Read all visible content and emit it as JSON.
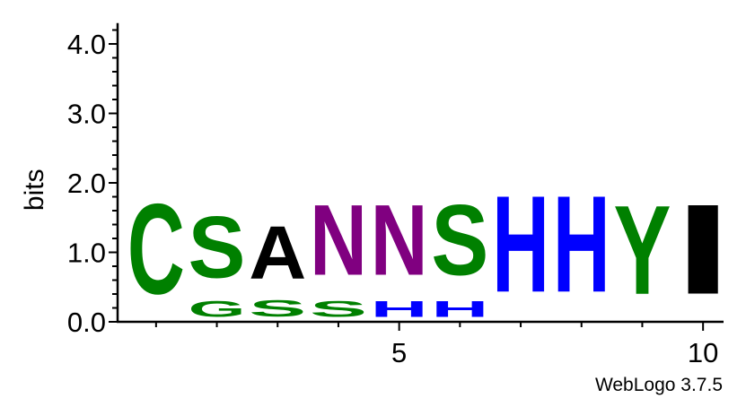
{
  "chart_data": {
    "type": "sequence-logo",
    "ylabel": "bits",
    "ylim": [
      0,
      4.3
    ],
    "y_ticks": [
      "0.0",
      "1.0",
      "2.0",
      "3.0",
      "4.0"
    ],
    "y_tick_values": [
      0,
      1,
      2,
      3,
      4
    ],
    "x_ticks": [
      "5",
      "10"
    ],
    "x_tick_values": [
      5,
      10
    ],
    "positions": [
      1,
      2,
      3,
      4,
      5,
      6,
      7,
      8,
      9,
      10
    ],
    "columns": [
      {
        "position": 1,
        "letters": [
          {
            "letter": "C",
            "bits": 2.08,
            "color": "#008000"
          }
        ]
      },
      {
        "position": 2,
        "letters": [
          {
            "letter": "G",
            "bits": 0.36,
            "color": "#008000"
          },
          {
            "letter": "S",
            "bits": 1.42,
            "color": "#008000"
          }
        ]
      },
      {
        "position": 3,
        "letters": [
          {
            "letter": "S",
            "bits": 0.38,
            "color": "#008000"
          },
          {
            "letter": "A",
            "bits": 1.22,
            "color": "#000000"
          }
        ]
      },
      {
        "position": 4,
        "letters": [
          {
            "letter": "S",
            "bits": 0.36,
            "color": "#008000"
          },
          {
            "letter": "N",
            "bits": 1.62,
            "color": "#800080"
          }
        ]
      },
      {
        "position": 5,
        "letters": [
          {
            "letter": "H",
            "bits": 0.36,
            "color": "#0000ff"
          },
          {
            "letter": "N",
            "bits": 1.62,
            "color": "#800080"
          }
        ]
      },
      {
        "position": 6,
        "letters": [
          {
            "letter": "H",
            "bits": 0.36,
            "color": "#0000ff"
          },
          {
            "letter": "S",
            "bits": 1.62,
            "color": "#008000"
          }
        ]
      },
      {
        "position": 7,
        "letters": [
          {
            "letter": "H",
            "bits": 2.22,
            "color": "#0000ff"
          }
        ]
      },
      {
        "position": 8,
        "letters": [
          {
            "letter": "H",
            "bits": 2.22,
            "color": "#0000ff"
          }
        ]
      },
      {
        "position": 9,
        "letters": [
          {
            "letter": "Y",
            "bits": 2.05,
            "color": "#008000"
          }
        ]
      },
      {
        "position": 10,
        "letters": [
          {
            "letter": "I",
            "bits": 2.07,
            "color": "#000000"
          }
        ]
      }
    ],
    "footer": "WebLogo 3.7.5"
  }
}
